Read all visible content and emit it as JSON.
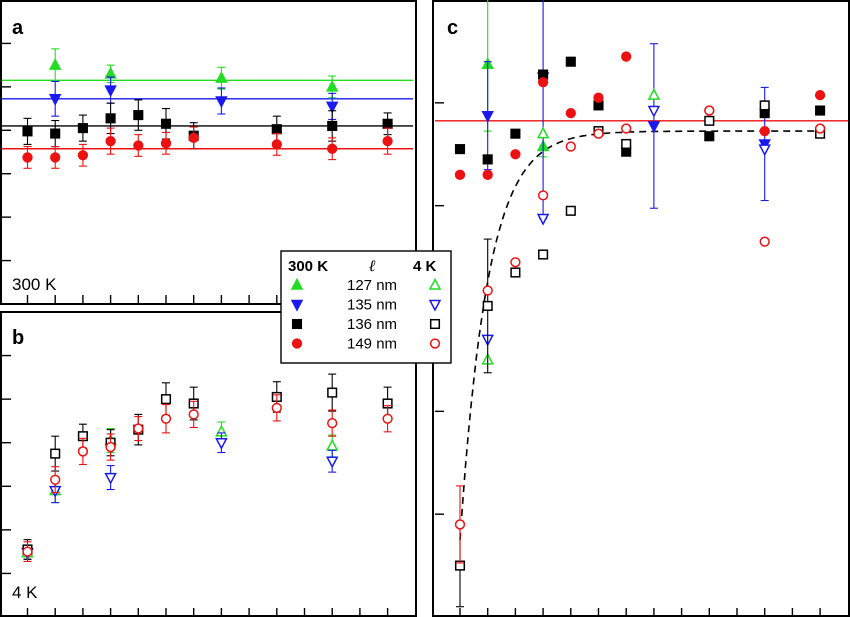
{
  "colors": {
    "green": "#22dd22",
    "blue": "#1a1aee",
    "black": "#000000",
    "red": "#ee1111"
  },
  "legend": {
    "head_300k": "300 K",
    "head_ell": "ℓ",
    "head_4k": "4 K",
    "entries": [
      {
        "label": "127 nm",
        "color": "#22dd22",
        "filled_marker": "triangle-up",
        "open_marker": "triangle-up"
      },
      {
        "label": "135 nm",
        "color": "#1a1aee",
        "filled_marker": "triangle-down",
        "open_marker": "triangle-down"
      },
      {
        "label": "136 nm",
        "color": "#000000",
        "filled_marker": "square",
        "open_marker": "square"
      },
      {
        "label": "149 nm",
        "color": "#ee1111",
        "filled_marker": "circle",
        "open_marker": "circle"
      }
    ]
  },
  "chart_data": [
    {
      "panel": "a",
      "type": "scatter",
      "note": "300 K",
      "x_range": [
        0,
        14
      ],
      "y_range": [
        0,
        14
      ],
      "hlines": [
        {
          "color": "#22dd22",
          "y": 10.3
        },
        {
          "color": "#1a1aee",
          "y": 9.45
        },
        {
          "color": "#000000",
          "y": 8.2
        },
        {
          "color": "#ee1111",
          "y": 7.15
        }
      ],
      "series": [
        {
          "color": "#22dd22",
          "marker": "triangle-up",
          "filled": true,
          "points": [
            [
              2,
              11.0,
              0.75
            ],
            [
              4,
              10.6,
              0.4
            ],
            [
              8,
              10.4,
              0.5
            ],
            [
              12,
              10.0,
              0.5
            ]
          ]
        },
        {
          "color": "#1a1aee",
          "marker": "triangle-down",
          "filled": true,
          "points": [
            [
              2,
              9.45,
              0.8
            ],
            [
              4,
              9.85,
              0.6
            ],
            [
              8,
              9.35,
              0.6
            ],
            [
              12,
              9.1,
              0.6
            ]
          ]
        },
        {
          "color": "#000000",
          "marker": "square",
          "filled": true,
          "points": [
            [
              1,
              7.95,
              0.6
            ],
            [
              2,
              7.85,
              0.6
            ],
            [
              3,
              8.1,
              0.6
            ],
            [
              4,
              8.55,
              0.7
            ],
            [
              5,
              8.7,
              0.7
            ],
            [
              6,
              8.3,
              0.7
            ],
            [
              7,
              7.75,
              0.6
            ],
            [
              10,
              8.05,
              0.6
            ],
            [
              12,
              8.2,
              0.7
            ],
            [
              14,
              8.3,
              0.5
            ]
          ]
        },
        {
          "color": "#ee1111",
          "marker": "circle",
          "filled": true,
          "points": [
            [
              1,
              6.75,
              0.5
            ],
            [
              2,
              6.75,
              0.5
            ],
            [
              3,
              6.85,
              0.5
            ],
            [
              4,
              7.5,
              0.6
            ],
            [
              5,
              7.3,
              0.5
            ],
            [
              6,
              7.4,
              0.5
            ],
            [
              7,
              7.65,
              0.5
            ],
            [
              10,
              7.35,
              0.5
            ],
            [
              12,
              7.15,
              0.5
            ],
            [
              14,
              7.5,
              0.6
            ]
          ]
        }
      ]
    },
    {
      "panel": "b",
      "type": "scatter",
      "note": "4 K",
      "x_range": [
        0,
        14
      ],
      "y_range": [
        0,
        14
      ],
      "series": [
        {
          "color": "#22dd22",
          "marker": "triangle-up",
          "filled": false,
          "points": [
            [
              1,
              2.95,
              0.3
            ],
            [
              2,
              5.8,
              0.55
            ],
            [
              4,
              8.1,
              0.55
            ],
            [
              8,
              8.5,
              0.45
            ],
            [
              12,
              7.85,
              0.5
            ]
          ]
        },
        {
          "color": "#1a1aee",
          "marker": "triangle-down",
          "filled": false,
          "points": [
            [
              1,
              2.95,
              0.3
            ],
            [
              2,
              5.8,
              0.55
            ],
            [
              4,
              6.4,
              0.55
            ],
            [
              8,
              8.0,
              0.45
            ],
            [
              12,
              7.15,
              0.5
            ]
          ]
        },
        {
          "color": "#000000",
          "marker": "square",
          "filled": false,
          "points": [
            [
              1,
              3.1,
              0.45
            ],
            [
              2,
              7.5,
              0.8
            ],
            [
              3,
              8.3,
              0.55
            ],
            [
              4,
              8.0,
              0.6
            ],
            [
              5,
              8.6,
              0.7
            ],
            [
              6,
              10.0,
              0.75
            ],
            [
              7,
              9.8,
              0.75
            ],
            [
              10,
              10.1,
              0.7
            ],
            [
              12,
              10.3,
              0.85
            ],
            [
              14,
              9.8,
              0.75
            ]
          ]
        },
        {
          "color": "#ee1111",
          "marker": "circle",
          "filled": false,
          "points": [
            [
              1,
              3.0,
              0.45
            ],
            [
              2,
              6.3,
              0.6
            ],
            [
              3,
              7.6,
              0.6
            ],
            [
              4,
              7.8,
              0.6
            ],
            [
              5,
              8.65,
              0.55
            ],
            [
              6,
              9.1,
              0.65
            ],
            [
              7,
              9.3,
              0.6
            ],
            [
              10,
              9.6,
              0.6
            ],
            [
              12,
              8.9,
              0.6
            ],
            [
              14,
              9.1,
              0.6
            ]
          ]
        }
      ]
    },
    {
      "panel": "c",
      "type": "scatter",
      "x_range": [
        0,
        14
      ],
      "y_range": [
        0,
        12
      ],
      "hlines": [
        {
          "color": "#ee1111",
          "y": 9.65
        }
      ],
      "fit_curve": {
        "type": "exponential",
        "style": "dashed",
        "color": "#000000",
        "asymptote": 9.45,
        "start": [
          1,
          1.5
        ],
        "rate": 1.0
      },
      "series": [
        {
          "color": "#22dd22",
          "marker": "triangle-up",
          "filled": true,
          "points": [
            [
              2,
              10.75,
              1.3
            ],
            [
              4,
              9.15,
              0.2
            ]
          ]
        },
        {
          "color": "#1a1aee",
          "marker": "triangle-down",
          "filled": true,
          "points": [
            [
              2,
              9.75,
              1.05
            ],
            [
              4,
              10.5,
              2.75
            ],
            [
              8,
              9.55,
              1.6
            ],
            [
              12,
              9.2,
              1.1
            ]
          ]
        },
        {
          "color": "#000000",
          "marker": "square",
          "filled": true,
          "points": [
            [
              1,
              9.1,
              0
            ],
            [
              2,
              8.9,
              0
            ],
            [
              3,
              9.4,
              0
            ],
            [
              4,
              10.55,
              0
            ],
            [
              5,
              10.8,
              0
            ],
            [
              6,
              9.95,
              0
            ],
            [
              7,
              9.05,
              0
            ],
            [
              10,
              9.35,
              0
            ],
            [
              12,
              9.8,
              0
            ],
            [
              14,
              9.85,
              0
            ]
          ]
        },
        {
          "color": "#ee1111",
          "marker": "circle",
          "filled": true,
          "points": [
            [
              1,
              8.6,
              0
            ],
            [
              2,
              8.6,
              0
            ],
            [
              3,
              9.0,
              0
            ],
            [
              4,
              10.4,
              0
            ],
            [
              5,
              9.8,
              0
            ],
            [
              6,
              10.1,
              0
            ],
            [
              7,
              10.9,
              0
            ],
            [
              10,
              9.85,
              0
            ],
            [
              12,
              9.45,
              0
            ],
            [
              14,
              10.15,
              0
            ]
          ]
        },
        {
          "color": "#22dd22",
          "marker": "triangle-up",
          "filled": false,
          "points": [
            [
              2,
              5.0,
              0
            ],
            [
              4,
              9.4,
              0
            ],
            [
              8,
              10.15,
              0
            ]
          ]
        },
        {
          "color": "#1a1aee",
          "marker": "triangle-down",
          "filled": false,
          "points": [
            [
              2,
              5.4,
              0
            ],
            [
              4,
              7.75,
              0
            ],
            [
              8,
              9.85,
              0
            ],
            [
              12,
              9.1,
              0
            ]
          ]
        },
        {
          "color": "#000000",
          "marker": "square",
          "filled": false,
          "points": [
            [
              1,
              1.0,
              0.8
            ],
            [
              2,
              6.05,
              1.3
            ],
            [
              3,
              6.7,
              0
            ],
            [
              4,
              7.05,
              0
            ],
            [
              5,
              7.9,
              0
            ],
            [
              6,
              9.45,
              0
            ],
            [
              7,
              9.2,
              0
            ],
            [
              10,
              9.65,
              0
            ],
            [
              12,
              9.95,
              0
            ],
            [
              14,
              9.4,
              0
            ]
          ]
        },
        {
          "color": "#ee1111",
          "marker": "circle",
          "filled": false,
          "points": [
            [
              1,
              1.8,
              0.75
            ],
            [
              2,
              6.35,
              0
            ],
            [
              3,
              6.9,
              0
            ],
            [
              4,
              8.2,
              0
            ],
            [
              5,
              9.15,
              0
            ],
            [
              6,
              9.4,
              0
            ],
            [
              7,
              9.5,
              0
            ],
            [
              10,
              9.85,
              0
            ],
            [
              12,
              7.3,
              0
            ],
            [
              14,
              9.5,
              0
            ]
          ]
        }
      ]
    }
  ]
}
